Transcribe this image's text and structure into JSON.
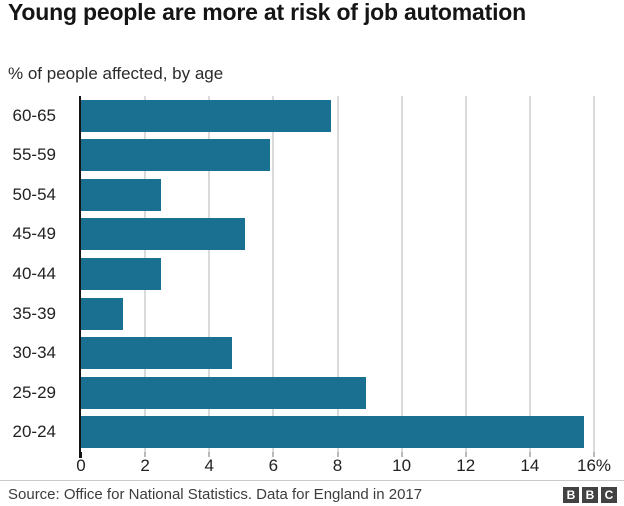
{
  "title": "Young people are more at risk of job automation",
  "subtitle": "% of people affected, by age",
  "source": "Source: Office for National Statistics. Data for England in 2017",
  "logo_letters": [
    "B",
    "B",
    "C"
  ],
  "colors": {
    "bar": "#1a7090",
    "gridline": "#dadada",
    "axis": "#141414"
  },
  "chart_data": {
    "type": "bar",
    "orientation": "horizontal",
    "title": "Young people are more at risk of job automation",
    "subtitle": "% of people affected, by age",
    "categories": [
      "60-65",
      "55-59",
      "50-54",
      "45-49",
      "40-44",
      "35-39",
      "30-34",
      "25-29",
      "20-24"
    ],
    "values": [
      7.8,
      5.9,
      2.5,
      5.1,
      2.5,
      1.3,
      4.7,
      8.9,
      15.7
    ],
    "xlim": [
      0,
      16
    ],
    "xticks": [
      0,
      2,
      4,
      6,
      8,
      10,
      12,
      14,
      16
    ],
    "xtick_labels": [
      "0",
      "2",
      "4",
      "6",
      "8",
      "10",
      "12",
      "14",
      "16%"
    ],
    "grid": true,
    "legend": false,
    "bar_color": "#1a7090"
  }
}
